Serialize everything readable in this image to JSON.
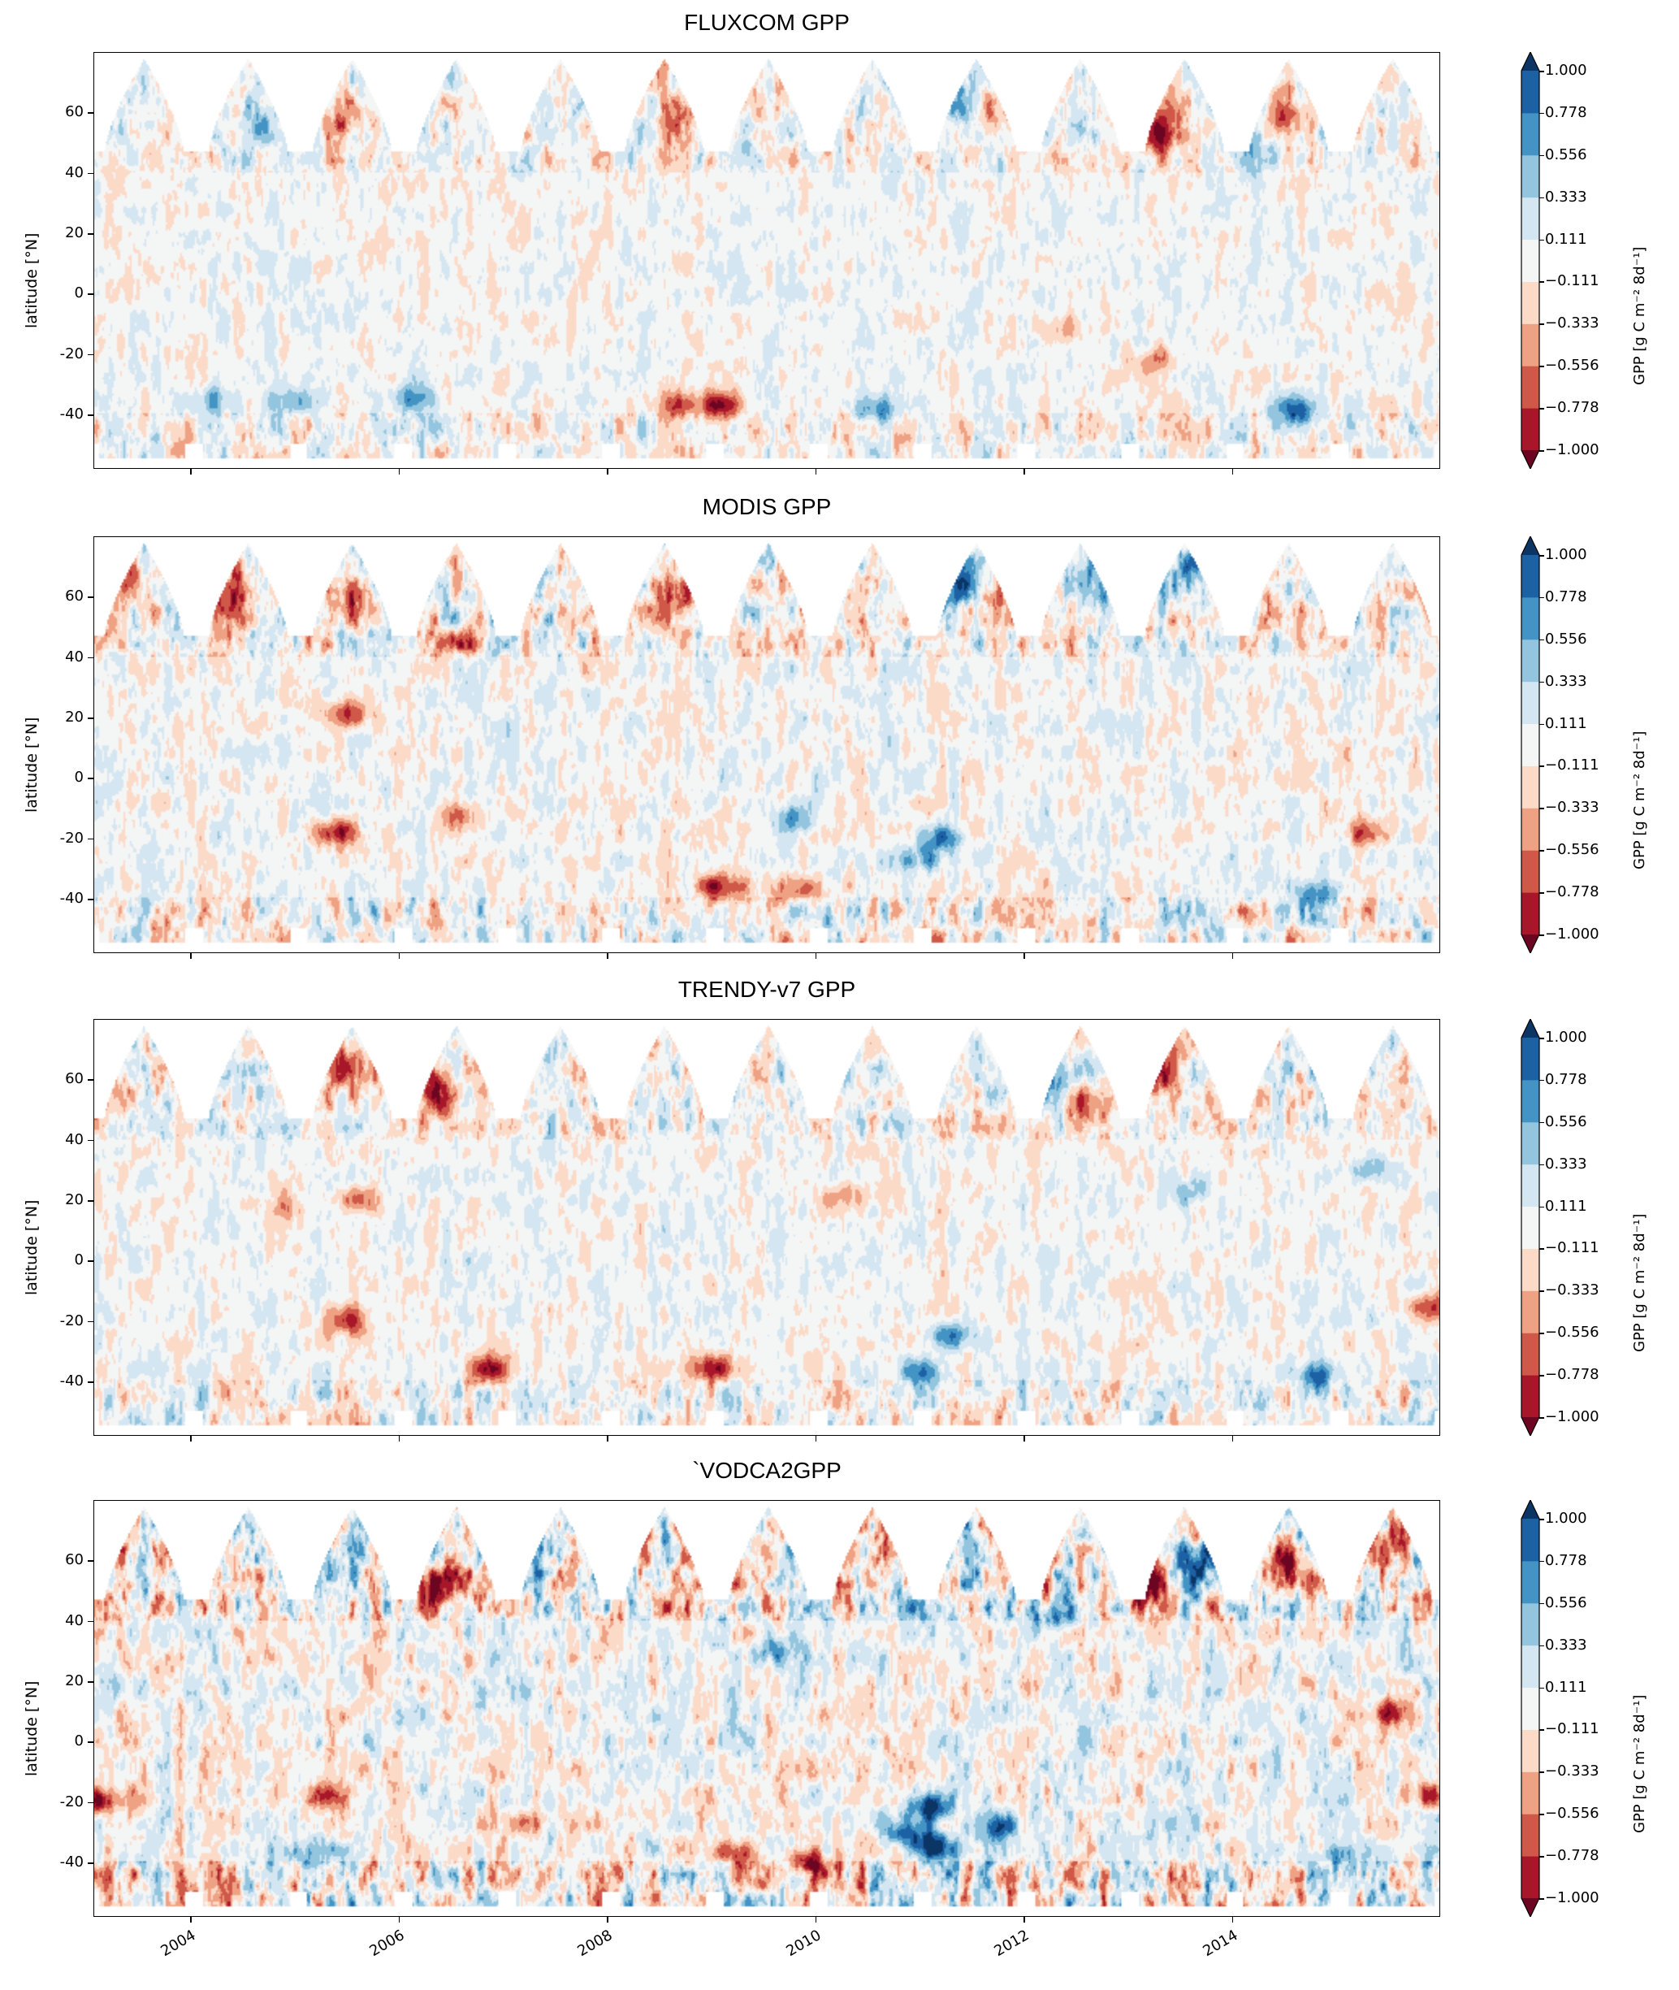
{
  "chart_data": {
    "type": "heatmap",
    "xlabel": "",
    "ylabel": "latitude [°N]",
    "xlim": [
      2003.07,
      2016.0
    ],
    "ylim": [
      -58,
      80
    ],
    "x_ticks": [
      "2004",
      "2006",
      "2008",
      "2010",
      "2012",
      "2014"
    ],
    "x_tick_values": [
      2004,
      2006,
      2008,
      2010,
      2012,
      2014
    ],
    "y_ticks": [
      "60",
      "40",
      "20",
      "0",
      "-20",
      "-40"
    ],
    "y_tick_values": [
      60,
      40,
      20,
      0,
      -20,
      -40
    ],
    "colorbar": {
      "label": "GPP [g C m⁻² 8d⁻¹]",
      "levels": [
        -1.0,
        -0.778,
        -0.556,
        -0.333,
        -0.111,
        0.111,
        0.333,
        0.556,
        0.778,
        1.0
      ],
      "tick_labels": [
        "1.000",
        "0.778",
        "0.556",
        "0.333",
        "0.111",
        "−0.111",
        "−0.333",
        "−0.556",
        "−0.778",
        "−1.000"
      ],
      "colors": [
        "#a8162a",
        "#cf5848",
        "#eea283",
        "#fcdac8",
        "#f4f5f5",
        "#d4e6f1",
        "#93c5de",
        "#4394c4",
        "#1d61a5"
      ],
      "under_color": "#6c0521",
      "over_color": "#0b3565",
      "extend": "both"
    },
    "panels": [
      {
        "title": "FLUXCOM GPP",
        "seed": 11,
        "noise_amp": 0.32,
        "features": [
          [
            2009.1,
            -37,
            -0.9
          ],
          [
            2008.7,
            -37,
            -0.6
          ],
          [
            2005.0,
            -36,
            0.6
          ],
          [
            2004.2,
            -36,
            0.5
          ],
          [
            2006.1,
            -35,
            0.6
          ],
          [
            2014.6,
            -39,
            0.7
          ],
          [
            2010.6,
            -38,
            0.6
          ],
          [
            2011.7,
            60,
            -0.6
          ],
          [
            2013.3,
            54,
            -0.85
          ],
          [
            2008.7,
            58,
            -0.5
          ],
          [
            2005.5,
            58,
            -0.5
          ],
          [
            2014.5,
            58,
            -0.5
          ],
          [
            2004.7,
            57,
            0.5
          ],
          [
            2011.4,
            62,
            0.5
          ],
          [
            2014.2,
            50,
            0.5
          ],
          [
            2012.4,
            -12,
            -0.4
          ],
          [
            2013.3,
            -22,
            -0.5
          ]
        ]
      },
      {
        "title": "MODIS GPP",
        "seed": 23,
        "noise_amp": 0.4,
        "features": [
          [
            2005.4,
            -18,
            -0.85
          ],
          [
            2011.2,
            -20,
            0.7
          ],
          [
            2011.0,
            -27,
            0.5
          ],
          [
            2006.6,
            -12,
            -0.6
          ],
          [
            2009.1,
            -36,
            -0.8
          ],
          [
            2009.9,
            -37,
            -0.6
          ],
          [
            2005.5,
            21,
            -0.7
          ],
          [
            2011.4,
            66,
            0.8
          ],
          [
            2011.7,
            60,
            -0.6
          ],
          [
            2013.6,
            65,
            0.6
          ],
          [
            2014.8,
            -38,
            0.6
          ],
          [
            2009.8,
            -14,
            0.5
          ],
          [
            2015.3,
            -18,
            -0.6
          ],
          [
            2004.4,
            60,
            -0.6
          ],
          [
            2005.5,
            60,
            -0.6
          ],
          [
            2003.2,
            70,
            -0.6
          ],
          [
            2008.7,
            58,
            -0.6
          ],
          [
            2006.5,
            45,
            -0.6
          ],
          [
            2012.6,
            65,
            0.6
          ]
        ]
      },
      {
        "title": "TRENDY-v7 GPP",
        "seed": 37,
        "noise_amp": 0.36,
        "features": [
          [
            2009.0,
            -36,
            -0.9
          ],
          [
            2006.9,
            -36,
            -0.8
          ],
          [
            2005.5,
            -20,
            -0.7
          ],
          [
            2005.6,
            20,
            -0.7
          ],
          [
            2004.9,
            18,
            -0.4
          ],
          [
            2011.0,
            -37,
            0.8
          ],
          [
            2011.3,
            -25,
            0.6
          ],
          [
            2014.8,
            -38,
            0.7
          ],
          [
            2012.3,
            60,
            0.7
          ],
          [
            2012.6,
            50,
            -0.6
          ],
          [
            2013.3,
            63,
            -0.8
          ],
          [
            2015.3,
            30,
            0.5
          ],
          [
            2015.9,
            -15,
            -0.6
          ],
          [
            2005.5,
            65,
            -0.6
          ],
          [
            2006.3,
            55,
            -0.7
          ],
          [
            2003.2,
            55,
            -0.6
          ],
          [
            2013.6,
            23,
            0.4
          ],
          [
            2010.3,
            22,
            -0.4
          ]
        ]
      },
      {
        "title": "`VODCA2GPP",
        "seed": 53,
        "noise_amp": 0.55,
        "features": [
          [
            2003.1,
            -20,
            -0.8
          ],
          [
            2005.3,
            -18,
            -0.9
          ],
          [
            2007.2,
            -27,
            -0.7
          ],
          [
            2011.1,
            -22,
            0.95
          ],
          [
            2010.9,
            -30,
            0.8
          ],
          [
            2011.7,
            -28,
            0.7
          ],
          [
            2011.1,
            -35,
            0.9
          ],
          [
            2009.9,
            -40,
            -0.8
          ],
          [
            2009.2,
            -37,
            -0.8
          ],
          [
            2005.0,
            -37,
            0.6
          ],
          [
            2015.0,
            -38,
            0.6
          ],
          [
            2006.4,
            50,
            -0.8
          ],
          [
            2013.2,
            52,
            -0.9
          ],
          [
            2013.6,
            60,
            0.8
          ],
          [
            2014.5,
            60,
            -0.7
          ],
          [
            2015.5,
            65,
            -0.6
          ],
          [
            2012.3,
            42,
            0.7
          ],
          [
            2015.9,
            -18,
            -0.7
          ],
          [
            2015.5,
            10,
            -0.6
          ],
          [
            2009.6,
            30,
            0.5
          ]
        ]
      }
    ]
  }
}
